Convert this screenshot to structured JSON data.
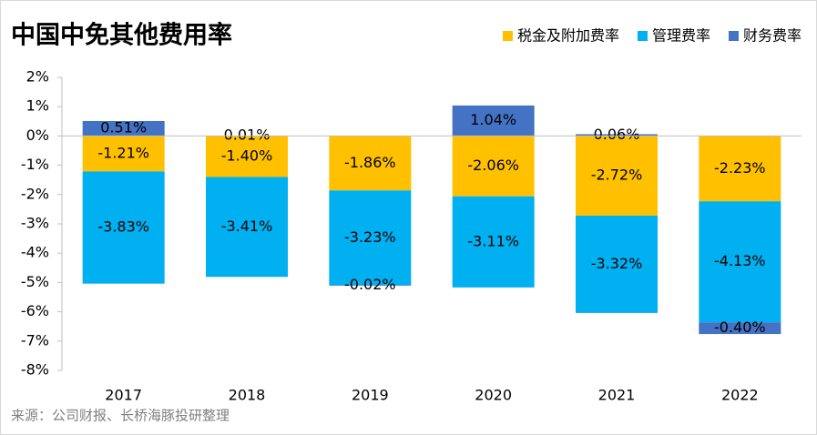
{
  "chart_data": {
    "type": "stacked-bar",
    "title": "中国中免其他费用率",
    "categories": [
      "2017",
      "2018",
      "2019",
      "2020",
      "2021",
      "2022"
    ],
    "series": [
      {
        "name": "税金及附加费率",
        "color": "#FFC000",
        "values": [
          -1.21,
          -1.4,
          -1.86,
          -2.06,
          -2.72,
          -2.23
        ],
        "value_labels": [
          "-1.21%",
          "-1.40%",
          "-1.86%",
          "-2.06%",
          "-2.72%",
          "-2.23%"
        ]
      },
      {
        "name": "管理费率",
        "color": "#00B0F0",
        "values": [
          -3.83,
          -3.41,
          -3.23,
          -3.11,
          -3.32,
          -4.13
        ],
        "value_labels": [
          "-3.83%",
          "-3.41%",
          "-3.23%",
          "-3.11%",
          "-3.32%",
          "-4.13%"
        ]
      },
      {
        "name": "财务费率",
        "color": "#4472C4",
        "values": [
          0.51,
          0.01,
          -0.02,
          1.04,
          0.06,
          -0.4
        ],
        "value_labels": [
          "0.51%",
          "0.01%",
          "-0.02%",
          "1.04%",
          "0.06%",
          "-0.40%"
        ]
      }
    ],
    "ylim": [
      -8,
      2
    ],
    "yticks": [
      {
        "value": 2,
        "label": "2%"
      },
      {
        "value": 1,
        "label": "1%"
      },
      {
        "value": 0,
        "label": "0%"
      },
      {
        "value": -1,
        "label": "-1%"
      },
      {
        "value": -2,
        "label": "-2%"
      },
      {
        "value": -3,
        "label": "-3%"
      },
      {
        "value": -4,
        "label": "-4%"
      },
      {
        "value": -5,
        "label": "-5%"
      },
      {
        "value": -6,
        "label": "-6%"
      },
      {
        "value": -7,
        "label": "-7%"
      },
      {
        "value": -8,
        "label": "-8%"
      }
    ],
    "grid": false,
    "legend": "top-right",
    "source": "来源：公司财报、长桥海豚投研整理"
  }
}
